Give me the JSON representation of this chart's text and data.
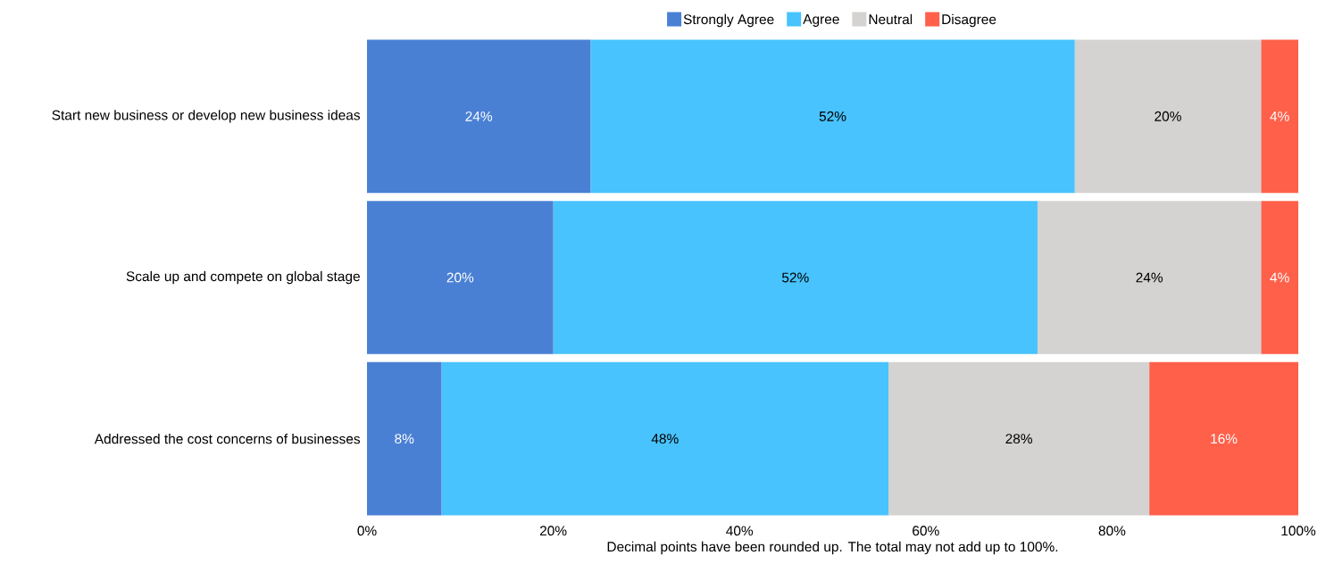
{
  "chart_data": {
    "type": "bar",
    "orientation": "horizontal",
    "stacked": true,
    "legend": "top",
    "grid": false,
    "categories": [
      "Start new business or develop new business ideas",
      "Scale up and compete on global stage",
      "Addressed the cost concerns of businesses"
    ],
    "series": [
      {
        "name": "Strongly Agree",
        "color": "#4a80d4",
        "values": [
          24,
          20,
          8
        ],
        "value_labels": [
          "24%",
          "20%",
          "8%"
        ]
      },
      {
        "name": "Agree",
        "color": "#48c3fd",
        "values": [
          52,
          52,
          48
        ],
        "value_labels": [
          "52%",
          "52%",
          "48%"
        ]
      },
      {
        "name": "Neutral",
        "color": "#d4d3d1",
        "values": [
          20,
          24,
          28
        ],
        "value_labels": [
          "20%",
          "24%",
          "28%"
        ]
      },
      {
        "name": "Disagree",
        "color": "#ff604a",
        "values": [
          4,
          4,
          16
        ],
        "value_labels": [
          "4%",
          "4%",
          "16%"
        ]
      }
    ],
    "xlim": [
      0,
      100
    ],
    "xticks": [
      {
        "value": 0,
        "label": "0%"
      },
      {
        "value": 20,
        "label": "20%"
      },
      {
        "value": 40,
        "label": "40%"
      },
      {
        "value": 60,
        "label": "60%"
      },
      {
        "value": 80,
        "label": "80%"
      },
      {
        "value": 100,
        "label": "100%"
      }
    ],
    "xlabel": "Decimal points have been rounded up. The total may not add up to 100%."
  }
}
